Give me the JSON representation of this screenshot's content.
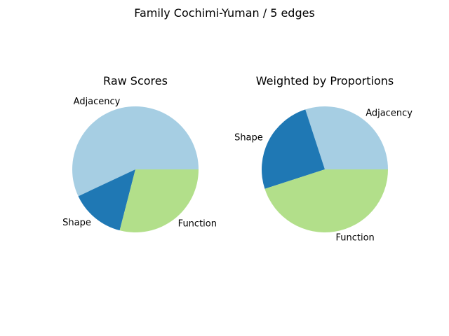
{
  "figure": {
    "title": "Family Cochimi-Yuman / 5 edges"
  },
  "chart_data": [
    {
      "type": "pie",
      "title": "Raw Scores",
      "start_angle_deg": 0,
      "direction": "counterclockwise",
      "slices": [
        {
          "label": "Adjacency",
          "value": 0.57,
          "color": "#a6cee3"
        },
        {
          "label": "Shape",
          "value": 0.14,
          "color": "#1f78b4"
        },
        {
          "label": "Function",
          "value": 0.29,
          "color": "#b2df8a"
        }
      ]
    },
    {
      "type": "pie",
      "title": "Weighted by Proportions",
      "start_angle_deg": 0,
      "direction": "counterclockwise",
      "slices": [
        {
          "label": "Adjacency",
          "value": 0.3,
          "color": "#a6cee3"
        },
        {
          "label": "Shape",
          "value": 0.25,
          "color": "#1f78b4"
        },
        {
          "label": "Function",
          "value": 0.45,
          "color": "#b2df8a"
        }
      ]
    }
  ]
}
